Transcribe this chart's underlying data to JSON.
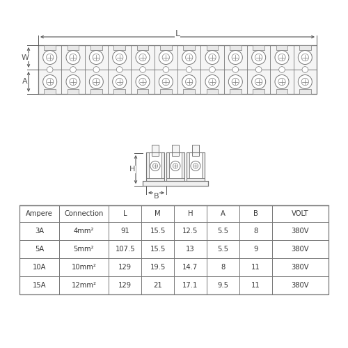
{
  "bg_color": "#ffffff",
  "line_color": "#777777",
  "dim_color": "#555555",
  "table_headers": [
    "Ampere",
    "Connection",
    "L",
    "M",
    "H",
    "A",
    "B",
    "VOLT"
  ],
  "table_rows": [
    [
      "3A",
      "4mm²",
      "91",
      "15.5",
      "12.5",
      "5.5",
      "8",
      "380V"
    ],
    [
      "5A",
      "5mm²",
      "107.5",
      "15.5",
      "13",
      "5.5",
      "9",
      "380V"
    ],
    [
      "10A",
      "10mm²",
      "129",
      "19.5",
      "14.7",
      "8",
      "11",
      "380V"
    ],
    [
      "15A",
      "12mm²",
      "129",
      "21",
      "17.1",
      "9.5",
      "11",
      "380V"
    ]
  ],
  "num_terminals": 12,
  "fig_width": 5.0,
  "fig_height": 5.0
}
